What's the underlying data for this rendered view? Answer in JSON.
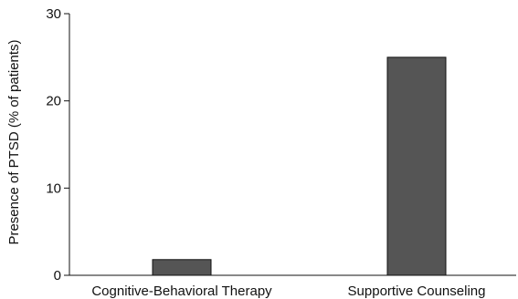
{
  "chart_data": {
    "type": "bar",
    "title": "",
    "xlabel": "",
    "ylabel": "Presence of PTSD (% of patients)",
    "categories": [
      "Cognitive-Behavioral Therapy",
      "Supportive Counseling"
    ],
    "values": [
      1.8,
      25
    ],
    "ylim": [
      0,
      30
    ],
    "yticks": [
      0,
      10,
      20,
      30
    ],
    "grid": false,
    "legend": "none",
    "bar_color": "#555555",
    "bar_edge_color": "#111111"
  }
}
